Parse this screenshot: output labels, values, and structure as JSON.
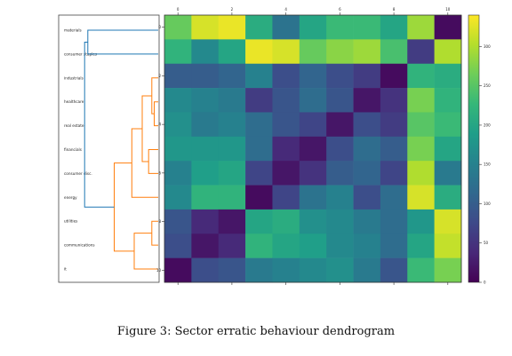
{
  "caption": "Figure 3: Sector erratic behaviour dendrogram",
  "colors": {
    "cluster_a": "#1f77b4",
    "cluster_b": "#ff7f0e",
    "heatmap_colormap": "viridis"
  },
  "chart_data": [
    {
      "type": "dendrogram",
      "orientation": "left",
      "leaves": [
        "materials",
        "consumer staples",
        "industrials",
        "healthcare",
        "real estate",
        "financials",
        "consumer disc.",
        "energy",
        "utilities",
        "communications",
        "it"
      ],
      "clusters": [
        {
          "members": [
            "materials",
            "consumer staples"
          ],
          "color": "#1f77b4"
        },
        {
          "members": [
            "industrials",
            "healthcare",
            "real estate",
            "financials",
            "consumer disc.",
            "energy",
            "utilities",
            "communications",
            "it"
          ],
          "color": "#ff7f0e"
        }
      ],
      "merges": [
        {
          "left": "healthcare",
          "right": "real estate",
          "height": 0.05
        },
        {
          "left": "industrials",
          "right": "healthcare + real estate",
          "height": 0.08
        },
        {
          "left": "financials",
          "right": "consumer disc.",
          "height": 0.12
        },
        {
          "left": "industrials + healthcare + real estate",
          "right": "financials + consumer disc.",
          "height": 0.2
        },
        {
          "left": "above",
          "right": "energy",
          "height": 0.33
        },
        {
          "left": "utilities",
          "right": "communications",
          "height": 0.08
        },
        {
          "left": "utilities + communications",
          "right": "it",
          "height": 0.3
        },
        {
          "left": "energy cluster",
          "right": "utilities cluster",
          "height": 0.55
        },
        {
          "left": "materials",
          "right": "consumer staples",
          "height": 0.88
        },
        {
          "left": "blue cluster",
          "right": "orange cluster",
          "height": 0.92
        }
      ]
    },
    {
      "type": "heatmap",
      "rows": 11,
      "cols": 11,
      "x_ticks": [
        "0",
        "2",
        "4",
        "6",
        "8",
        "10"
      ],
      "y_ticks": [
        "10",
        "8",
        "6",
        "4",
        "2",
        "0"
      ],
      "colorbar_ticks": [
        0,
        50,
        100,
        150,
        200,
        250,
        300
      ],
      "vmin": 0,
      "vmax": 340,
      "values": [
        [
          260,
          320,
          330,
          210,
          130,
          200,
          230,
          230,
          200,
          290,
          10
        ],
        [
          220,
          160,
          200,
          330,
          320,
          260,
          280,
          290,
          240,
          60,
          300
        ],
        [
          100,
          100,
          110,
          150,
          80,
          110,
          80,
          60,
          10,
          220,
          210
        ],
        [
          160,
          150,
          140,
          60,
          90,
          120,
          90,
          20,
          50,
          270,
          220
        ],
        [
          170,
          140,
          150,
          120,
          90,
          70,
          20,
          80,
          60,
          250,
          230
        ],
        [
          180,
          180,
          180,
          120,
          40,
          20,
          80,
          120,
          100,
          270,
          200
        ],
        [
          150,
          190,
          200,
          70,
          20,
          50,
          100,
          110,
          70,
          300,
          140
        ],
        [
          160,
          220,
          220,
          10,
          70,
          130,
          150,
          80,
          120,
          320,
          210
        ],
        [
          90,
          40,
          20,
          200,
          210,
          170,
          160,
          140,
          120,
          180,
          320
        ],
        [
          80,
          20,
          40,
          220,
          200,
          190,
          160,
          150,
          120,
          200,
          310
        ],
        [
          10,
          80,
          90,
          140,
          150,
          160,
          170,
          140,
          90,
          230,
          270
        ]
      ]
    }
  ]
}
